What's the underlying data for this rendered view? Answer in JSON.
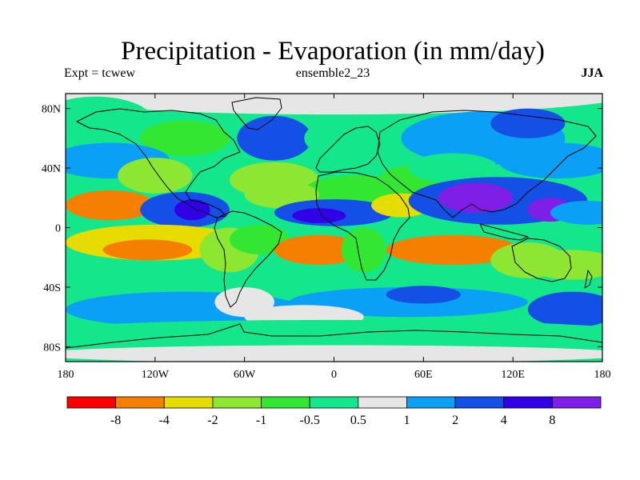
{
  "chart_data": {
    "type": "heatmap",
    "title": "Precipitation - Evaporation (in mm/day)",
    "subtitle_left": "Expt = tcwew",
    "subtitle_center": "ensemble2_23",
    "subtitle_right": "JJA",
    "x_axis": {
      "range": [
        -180,
        180
      ],
      "ticks": [
        {
          "value": -180,
          "label": "180"
        },
        {
          "value": -120,
          "label": "120W"
        },
        {
          "value": -60,
          "label": "60W"
        },
        {
          "value": 0,
          "label": "0"
        },
        {
          "value": 60,
          "label": "60E"
        },
        {
          "value": 120,
          "label": "120E"
        },
        {
          "value": 180,
          "label": "180"
        }
      ]
    },
    "y_axis": {
      "range": [
        -90,
        90
      ],
      "ticks": [
        {
          "value": 80,
          "label": "80N"
        },
        {
          "value": 40,
          "label": "40N"
        },
        {
          "value": 0,
          "label": "0"
        },
        {
          "value": -40,
          "label": "40S"
        },
        {
          "value": -80,
          "label": "80S"
        }
      ]
    },
    "colorbar": {
      "bins": [
        {
          "color": "#ff0000"
        },
        {
          "color": "#f57f00"
        },
        {
          "color": "#e6dc00"
        },
        {
          "color": "#8ce632"
        },
        {
          "color": "#32e632"
        },
        {
          "color": "#14e68c"
        },
        {
          "color": "#e6e6e6"
        },
        {
          "color": "#0aa0f5"
        },
        {
          "color": "#1450e6"
        },
        {
          "color": "#3200e6"
        },
        {
          "color": "#7f1ee6"
        }
      ],
      "labels": [
        "-8",
        "-4",
        "-2",
        "-1",
        "-0.5",
        "0.5",
        "1",
        "2",
        "4",
        "8"
      ]
    },
    "fields": [
      {
        "lon": 0,
        "lat": 90,
        "rx": 200,
        "ry": 14,
        "bin": 6
      },
      {
        "lon": -160,
        "lat": 70,
        "rx": 40,
        "ry": 18,
        "bin": 5
      },
      {
        "lon": -100,
        "lat": 60,
        "rx": 30,
        "ry": 12,
        "bin": 4
      },
      {
        "lon": -40,
        "lat": 60,
        "rx": 25,
        "ry": 15,
        "bin": 8
      },
      {
        "lon": 15,
        "lat": 60,
        "rx": 35,
        "ry": 15,
        "bin": 5
      },
      {
        "lon": 100,
        "lat": 60,
        "rx": 55,
        "ry": 18,
        "bin": 7
      },
      {
        "lon": 130,
        "lat": 70,
        "rx": 25,
        "ry": 10,
        "bin": 8
      },
      {
        "lon": -150,
        "lat": 45,
        "rx": 40,
        "ry": 12,
        "bin": 7
      },
      {
        "lon": -120,
        "lat": 35,
        "rx": 25,
        "ry": 12,
        "bin": 3
      },
      {
        "lon": -40,
        "lat": 32,
        "rx": 30,
        "ry": 12,
        "bin": 3
      },
      {
        "lon": 15,
        "lat": 25,
        "rx": 35,
        "ry": 10,
        "bin": 4
      },
      {
        "lon": 55,
        "lat": 32,
        "rx": 25,
        "ry": 10,
        "bin": 4
      },
      {
        "lon": 80,
        "lat": 40,
        "rx": 30,
        "ry": 10,
        "bin": 5
      },
      {
        "lon": 150,
        "lat": 45,
        "rx": 40,
        "ry": 12,
        "bin": 7
      },
      {
        "lon": -150,
        "lat": 15,
        "rx": 30,
        "ry": 10,
        "bin": 1
      },
      {
        "lon": -100,
        "lat": 12,
        "rx": 30,
        "ry": 12,
        "bin": 8
      },
      {
        "lon": -95,
        "lat": 12,
        "rx": 12,
        "ry": 7,
        "bin": 9
      },
      {
        "lon": -35,
        "lat": 22,
        "rx": 25,
        "ry": 9,
        "bin": 3
      },
      {
        "lon": 0,
        "lat": 10,
        "rx": 40,
        "ry": 9,
        "bin": 8
      },
      {
        "lon": -10,
        "lat": 8,
        "rx": 18,
        "ry": 5,
        "bin": 9
      },
      {
        "lon": 45,
        "lat": 15,
        "rx": 20,
        "ry": 8,
        "bin": 2
      },
      {
        "lon": 110,
        "lat": 18,
        "rx": 60,
        "ry": 16,
        "bin": 8
      },
      {
        "lon": 95,
        "lat": 20,
        "rx": 25,
        "ry": 10,
        "bin": 10
      },
      {
        "lon": 145,
        "lat": 12,
        "rx": 15,
        "ry": 8,
        "bin": 10
      },
      {
        "lon": 170,
        "lat": 10,
        "rx": 25,
        "ry": 8,
        "bin": 7
      },
      {
        "lon": -120,
        "lat": -10,
        "rx": 60,
        "ry": 12,
        "bin": 2
      },
      {
        "lon": -125,
        "lat": -15,
        "rx": 30,
        "ry": 7,
        "bin": 1
      },
      {
        "lon": -70,
        "lat": -15,
        "rx": 20,
        "ry": 15,
        "bin": 3
      },
      {
        "lon": -50,
        "lat": -8,
        "rx": 20,
        "ry": 10,
        "bin": 4
      },
      {
        "lon": -10,
        "lat": -15,
        "rx": 30,
        "ry": 10,
        "bin": 1
      },
      {
        "lon": 20,
        "lat": -15,
        "rx": 15,
        "ry": 15,
        "bin": 4
      },
      {
        "lon": 80,
        "lat": -15,
        "rx": 45,
        "ry": 10,
        "bin": 1
      },
      {
        "lon": 130,
        "lat": -22,
        "rx": 25,
        "ry": 12,
        "bin": 3
      },
      {
        "lon": 160,
        "lat": -25,
        "rx": 30,
        "ry": 10,
        "bin": 3
      },
      {
        "lon": -140,
        "lat": -35,
        "rx": 40,
        "ry": 8,
        "bin": 5
      },
      {
        "lon": 60,
        "lat": -35,
        "rx": 40,
        "ry": 8,
        "bin": 5
      },
      {
        "lon": -100,
        "lat": -55,
        "rx": 80,
        "ry": 12,
        "bin": 7
      },
      {
        "lon": -60,
        "lat": -50,
        "rx": 20,
        "ry": 10,
        "bin": 6
      },
      {
        "lon": 50,
        "lat": -50,
        "rx": 80,
        "ry": 10,
        "bin": 7
      },
      {
        "lon": 60,
        "lat": -45,
        "rx": 25,
        "ry": 6,
        "bin": 8
      },
      {
        "lon": 160,
        "lat": -55,
        "rx": 30,
        "ry": 12,
        "bin": 8
      },
      {
        "lon": -20,
        "lat": -60,
        "rx": 40,
        "ry": 8,
        "bin": 6
      },
      {
        "lon": 0,
        "lat": -70,
        "rx": 200,
        "ry": 8,
        "bin": 5
      },
      {
        "lon": 0,
        "lat": -85,
        "rx": 200,
        "ry": 6,
        "bin": 6
      }
    ]
  }
}
